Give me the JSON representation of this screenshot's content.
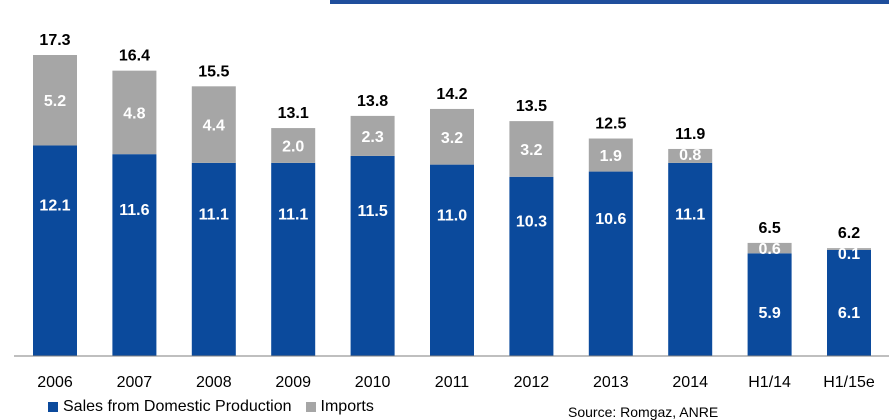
{
  "chart_data": {
    "type": "bar",
    "stacked": true,
    "categories": [
      "2006",
      "2007",
      "2008",
      "2009",
      "2010",
      "2011",
      "2012",
      "2013",
      "2014",
      "H1/14",
      "H1/15e"
    ],
    "series": [
      {
        "name": "Sales from Domestic Production",
        "color": "#0b4a9c",
        "values": [
          12.1,
          11.6,
          11.1,
          11.1,
          11.5,
          11.0,
          10.3,
          10.6,
          11.1,
          5.9,
          6.1
        ]
      },
      {
        "name": "Imports",
        "color": "#a6a6a6",
        "values": [
          5.2,
          4.8,
          4.4,
          2.0,
          2.3,
          3.2,
          3.2,
          1.9,
          0.8,
          0.6,
          0.1
        ]
      }
    ],
    "totals": [
      17.3,
      16.4,
      15.5,
      13.1,
      13.8,
      14.2,
      13.5,
      12.5,
      11.9,
      6.5,
      6.2
    ],
    "ylim": [
      0,
      17.3
    ],
    "grid": false,
    "legend_position": "bottom-left",
    "source": "Source: Romgaz, ANRE"
  },
  "colors": {
    "accent_rule": "#1f4e9c",
    "axis": "#7f7f7f"
  }
}
